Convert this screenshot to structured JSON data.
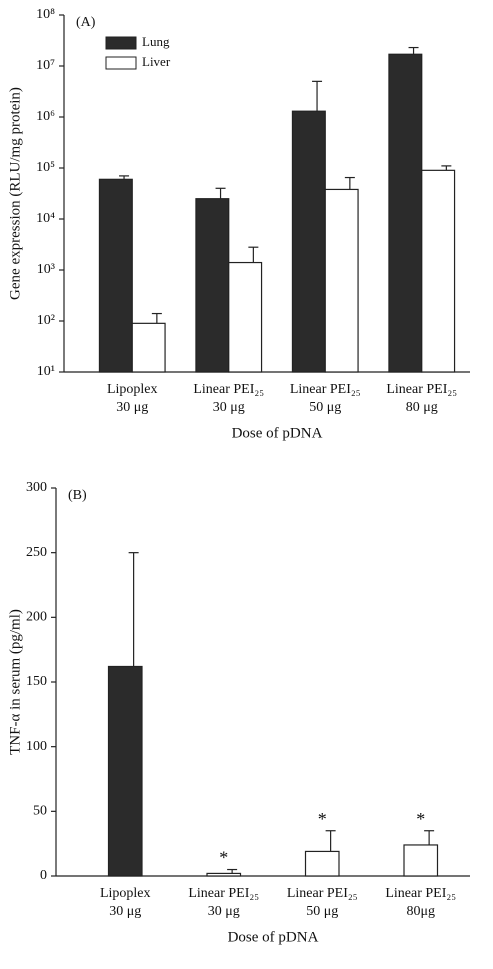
{
  "chart_data": [
    {
      "type": "bar",
      "panel_label": "(A)",
      "y_label": "Gene expression (RLU/mg protein)",
      "x_label": "Dose of pDNA",
      "log_scale": true,
      "categories": [
        [
          "Lipoplex",
          "30 μg"
        ],
        [
          "Linear PEI₂₅",
          "30 μg"
        ],
        [
          "Linear PEI₂₅",
          "50 μg"
        ],
        [
          "Linear PEI₂₅",
          "80 μg"
        ]
      ],
      "series": [
        {
          "name": "Lung",
          "color": "#2b2b2b",
          "values": [
            60000,
            25000,
            1300000,
            17000000
          ],
          "errors": [
            10000,
            15000,
            3700000,
            6000000
          ]
        },
        {
          "name": "Liver",
          "color": "#ffffff",
          "values": [
            90,
            1400,
            38000,
            90000
          ],
          "errors": [
            50,
            1400,
            27000,
            20000
          ]
        }
      ],
      "ylim": [
        10,
        100000000
      ],
      "yticks": [
        {
          "value": 10,
          "label": "10¹"
        },
        {
          "value": 100,
          "label": "10²"
        },
        {
          "value": 1000,
          "label": "10³"
        },
        {
          "value": 10000,
          "label": "10⁴"
        },
        {
          "value": 100000,
          "label": "10⁵"
        },
        {
          "value": 1000000,
          "label": "10⁶"
        },
        {
          "value": 10000000,
          "label": "10⁷"
        },
        {
          "value": 100000000,
          "label": "10⁸"
        }
      ],
      "legend": "top-left"
    },
    {
      "type": "bar",
      "panel_label": "(B)",
      "y_label": "TNF-α in serum (pg/ml)",
      "x_label": "Dose of pDNA",
      "log_scale": false,
      "categories": [
        [
          "Lipoplex",
          "30 μg"
        ],
        [
          "Linear PEI₂₅",
          "30 μg"
        ],
        [
          "Linear PEI₂₅",
          "50 μg"
        ],
        [
          "Linear PEI₂₅",
          "80μg"
        ]
      ],
      "values": [
        162,
        2,
        19,
        24
      ],
      "errors": [
        88,
        3,
        16,
        11
      ],
      "colors": [
        "#2b2b2b",
        "#ffffff",
        "#ffffff",
        "#ffffff"
      ],
      "markers": [
        null,
        "*",
        "*",
        "*"
      ],
      "ylim": [
        0,
        300
      ],
      "yticks": [
        0,
        50,
        100,
        150,
        200,
        250,
        300
      ]
    }
  ]
}
